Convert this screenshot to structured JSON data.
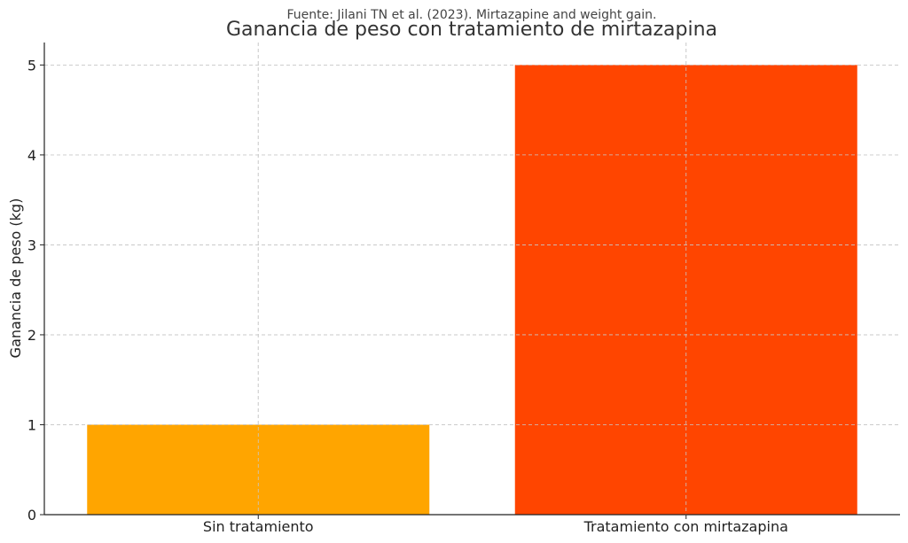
{
  "chart_data": {
    "type": "bar",
    "subtitle": "Fuente: Jilani TN et al. (2023). Mirtazapine and weight gain.",
    "title": "Ganancia de peso con tratamiento de mirtazapina",
    "xlabel": "",
    "ylabel": "Ganancia de peso (kg)",
    "categories": [
      "Sin tratamiento",
      "Tratamiento con mirtazapina"
    ],
    "values": [
      1,
      5
    ],
    "colors": [
      "#FFA500",
      "#FF4500"
    ],
    "ylim": [
      0,
      5.25
    ],
    "yticks": [
      "0",
      "1",
      "2",
      "3",
      "4",
      "5"
    ],
    "grid": true
  }
}
